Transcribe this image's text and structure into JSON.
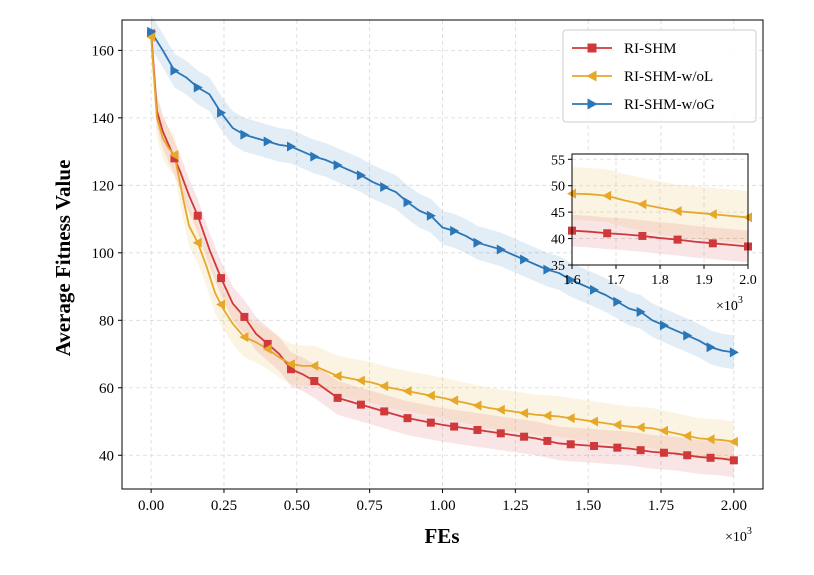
{
  "chart_data": {
    "type": "line",
    "title": "",
    "xlabel": "FEs",
    "ylabel": "Average Fitness Value",
    "x_multiplier_label": "×10",
    "x_multiplier_exp": "3",
    "xlim": [
      -0.1,
      2.1
    ],
    "ylim": [
      30,
      169
    ],
    "x_ticks": [
      0.0,
      0.25,
      0.5,
      0.75,
      1.0,
      1.25,
      1.5,
      1.75,
      2.0
    ],
    "x_tick_labels": [
      "0.00",
      "0.25",
      "0.50",
      "0.75",
      "1.00",
      "1.25",
      "1.50",
      "1.75",
      "2.00"
    ],
    "y_ticks": [
      40,
      60,
      80,
      100,
      120,
      140,
      160
    ],
    "y_tick_labels": [
      "40",
      "60",
      "80",
      "100",
      "120",
      "140",
      "160"
    ],
    "grid": true,
    "legend_position": "top-right",
    "series": [
      {
        "name": "RI-SHM",
        "color": "#d0393a",
        "marker": "square",
        "x": [
          0.0,
          0.02,
          0.04,
          0.06,
          0.08,
          0.1,
          0.13,
          0.16,
          0.2,
          0.24,
          0.28,
          0.32,
          0.36,
          0.4,
          0.44,
          0.48,
          0.52,
          0.56,
          0.6,
          0.64,
          0.7,
          0.76,
          0.82,
          0.88,
          0.94,
          1.0,
          1.08,
          1.16,
          1.24,
          1.32,
          1.4,
          1.48,
          1.56,
          1.64,
          1.72,
          1.8,
          1.88,
          1.96,
          2.0
        ],
        "y": [
          165,
          142,
          136,
          132,
          128,
          124,
          117,
          111,
          101,
          92.5,
          85,
          81,
          76,
          73,
          70,
          65.5,
          64,
          62,
          59.5,
          57,
          55.5,
          54,
          52.5,
          51,
          50,
          49,
          48,
          47,
          46,
          45,
          43.5,
          43,
          42.5,
          42,
          41,
          40.5,
          39.5,
          39,
          38.5
        ],
        "markers_x": [
          0.0,
          0.08,
          0.16,
          0.24,
          0.32,
          0.4,
          0.48,
          0.56,
          0.64,
          0.72,
          0.8,
          0.88,
          0.96,
          1.04,
          1.12,
          1.2,
          1.28,
          1.36,
          1.44,
          1.52,
          1.6,
          1.68,
          1.76,
          1.84,
          1.92,
          2.0
        ],
        "band": 5
      },
      {
        "name": "RI-SHM-w/oL",
        "color": "#e6a829",
        "marker": "triangle-left",
        "x": [
          0.0,
          0.02,
          0.04,
          0.06,
          0.08,
          0.11,
          0.13,
          0.16,
          0.19,
          0.22,
          0.25,
          0.28,
          0.32,
          0.36,
          0.4,
          0.44,
          0.48,
          0.52,
          0.56,
          0.6,
          0.64,
          0.7,
          0.76,
          0.82,
          0.88,
          0.94,
          1.0,
          1.08,
          1.16,
          1.24,
          1.32,
          1.4,
          1.48,
          1.56,
          1.64,
          1.72,
          1.8,
          1.88,
          1.96,
          2.0
        ],
        "y": [
          164,
          140,
          134,
          131,
          129,
          116,
          108,
          103,
          96,
          88,
          83,
          79,
          75,
          73.5,
          71.5,
          69,
          67,
          66.5,
          66.5,
          65,
          63.5,
          62.5,
          61.5,
          60,
          59,
          58,
          57,
          55.5,
          54,
          53,
          52,
          51.5,
          50.5,
          49.5,
          48.5,
          48,
          46.5,
          45,
          44.5,
          44
        ],
        "markers_x": [
          0.0,
          0.08,
          0.16,
          0.24,
          0.32,
          0.4,
          0.48,
          0.56,
          0.64,
          0.72,
          0.8,
          0.88,
          0.96,
          1.04,
          1.12,
          1.2,
          1.28,
          1.36,
          1.44,
          1.52,
          1.6,
          1.68,
          1.76,
          1.84,
          1.92,
          2.0
        ],
        "band": 6
      },
      {
        "name": "RI-SHM-w/oG",
        "color": "#2a76b7",
        "marker": "triangle-right",
        "x": [
          0.0,
          0.04,
          0.08,
          0.12,
          0.16,
          0.2,
          0.24,
          0.28,
          0.32,
          0.36,
          0.4,
          0.44,
          0.48,
          0.52,
          0.56,
          0.6,
          0.64,
          0.68,
          0.72,
          0.76,
          0.8,
          0.84,
          0.88,
          0.92,
          0.96,
          1.0,
          1.04,
          1.08,
          1.12,
          1.16,
          1.2,
          1.24,
          1.28,
          1.32,
          1.36,
          1.4,
          1.44,
          1.48,
          1.52,
          1.56,
          1.6,
          1.64,
          1.68,
          1.72,
          1.76,
          1.8,
          1.84,
          1.88,
          1.92,
          1.96,
          2.0
        ],
        "y": [
          165.5,
          160,
          154,
          152,
          149,
          147,
          141.5,
          137,
          135,
          134,
          133,
          132,
          131.5,
          130,
          128.5,
          127.5,
          126,
          124.5,
          123,
          121,
          119.5,
          118,
          115,
          112.5,
          111,
          107.5,
          106.5,
          105,
          103,
          102,
          101,
          99.5,
          98,
          96.5,
          95,
          94,
          92,
          90.5,
          89,
          87.5,
          85.5,
          83.5,
          82.5,
          80,
          78.5,
          77,
          75.5,
          74,
          72,
          71,
          70.5
        ],
        "markers_x": [
          0.0,
          0.08,
          0.16,
          0.24,
          0.32,
          0.4,
          0.48,
          0.56,
          0.64,
          0.72,
          0.8,
          0.88,
          0.96,
          1.04,
          1.12,
          1.2,
          1.28,
          1.36,
          1.44,
          1.52,
          1.6,
          1.68,
          1.76,
          1.84,
          1.92,
          2.0
        ],
        "band": 5
      }
    ],
    "inset": {
      "xlim": [
        1.6,
        2.0
      ],
      "ylim": [
        35,
        56
      ],
      "x_ticks": [
        1.6,
        1.7,
        1.8,
        1.9,
        2.0
      ],
      "x_tick_labels": [
        "1.6",
        "1.7",
        "1.8",
        "1.9",
        "2.0"
      ],
      "y_ticks": [
        35,
        40,
        45,
        50,
        55
      ],
      "y_tick_labels": [
        "35",
        "40",
        "45",
        "50",
        "55"
      ],
      "x_multiplier_label": "×10",
      "x_multiplier_exp": "3",
      "series": [
        {
          "name": "RI-SHM",
          "x": [
            1.6,
            1.64,
            1.68,
            1.72,
            1.76,
            1.8,
            1.84,
            1.88,
            1.92,
            1.96,
            2.0
          ],
          "y": [
            41.5,
            41.3,
            41.0,
            40.8,
            40.5,
            40.1,
            39.8,
            39.4,
            39.1,
            38.8,
            38.5
          ],
          "markers_x": [
            1.6,
            1.68,
            1.76,
            1.84,
            1.92,
            2.0
          ],
          "band": 3
        },
        {
          "name": "RI-SHM-w/oL",
          "x": [
            1.6,
            1.64,
            1.68,
            1.72,
            1.76,
            1.8,
            1.84,
            1.88,
            1.92,
            1.96,
            2.0
          ],
          "y": [
            48.5,
            48.4,
            48.1,
            47.2,
            46.5,
            45.8,
            45.2,
            44.9,
            44.6,
            44.3,
            44.0
          ],
          "markers_x": [
            1.6,
            1.68,
            1.76,
            1.84,
            1.92,
            2.0
          ],
          "band": 5
        }
      ]
    }
  }
}
